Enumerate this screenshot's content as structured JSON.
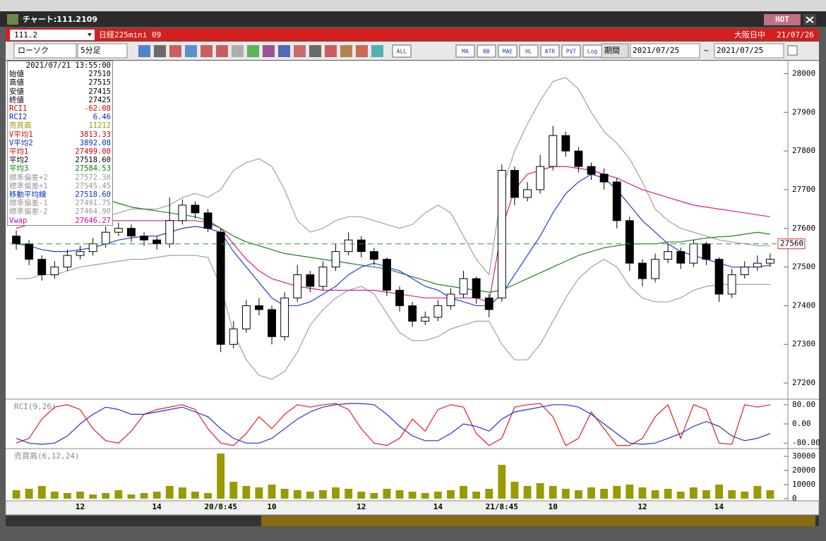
{
  "window": {
    "title": "チャート:111.2109",
    "hot": "HOT"
  },
  "header": {
    "code": "111.2",
    "name": "日経225mini 09",
    "market": "大阪日中",
    "date": "21/07/26"
  },
  "toolbar": {
    "chart_type": "ローソク",
    "interval": "5分足",
    "buttons": [
      "ALL",
      "MA",
      "BB",
      "MAE",
      "HL",
      "ATR",
      "PVT",
      "Log"
    ],
    "period_label": "期間",
    "from": "2021/07/25",
    "tilde": "~",
    "to": "2021/07/25"
  },
  "info_panel": {
    "datetime": "2021/07/21  13:55:00",
    "rows": [
      {
        "label": "始値",
        "value": "27510",
        "color": "#000"
      },
      {
        "label": "高値",
        "value": "27515",
        "color": "#000"
      },
      {
        "label": "安値",
        "value": "27415",
        "color": "#000"
      },
      {
        "label": "終値",
        "value": "27425",
        "color": "#000"
      },
      {
        "label": "RCI1",
        "value": "-62.08",
        "color": "#d00000"
      },
      {
        "label": "RCI2",
        "value": "6.46",
        "color": "#0030c0"
      },
      {
        "label": "売買高",
        "value": "11212",
        "color": "#9a9a00"
      },
      {
        "label": "V平均1",
        "value": "3813.33",
        "color": "#d00000"
      },
      {
        "label": "V平均2",
        "value": "3892.08",
        "color": "#0030c0"
      },
      {
        "label": "平均1",
        "value": "27499.00",
        "color": "#d00000"
      },
      {
        "label": "平均2",
        "value": "27518.60",
        "color": "#000"
      },
      {
        "label": "平均3",
        "value": "27584.53",
        "color": "#008000"
      },
      {
        "label": "標準偏差+2",
        "value": "27572.30",
        "color": "#999"
      },
      {
        "label": "標準偏差+1",
        "value": "27545.45",
        "color": "#999"
      },
      {
        "label": "移動平均線",
        "value": "27518.60",
        "color": "#0030c0"
      },
      {
        "label": "標準偏差-1",
        "value": "27491.75",
        "color": "#999"
      },
      {
        "label": "標準偏差-2",
        "value": "27464.90",
        "color": "#999"
      },
      {
        "label": "Vwap",
        "value": "27646.27",
        "color": "#d000a0"
      }
    ]
  },
  "chart_data": [
    {
      "type": "candlestick",
      "categories": [
        null,
        null,
        null,
        null,
        null,
        "12",
        null,
        null,
        null,
        null,
        null,
        "14",
        null,
        null,
        null,
        null,
        "20/8:45",
        null,
        null,
        null,
        "10",
        null,
        null,
        null,
        null,
        null,
        null,
        "12",
        null,
        null,
        null,
        null,
        null,
        "14",
        null,
        null,
        null,
        null,
        "21/8:45",
        null,
        null,
        null,
        "10",
        null,
        null,
        null,
        null,
        null,
        null,
        "12",
        null,
        null,
        null,
        null,
        null,
        "14",
        null,
        null,
        null,
        null
      ],
      "open": [
        27580,
        27560,
        27520,
        27480,
        27500,
        27530,
        27540,
        27560,
        27590,
        27600,
        27580,
        27570,
        27560,
        27620,
        27660,
        27640,
        27590,
        27300,
        27340,
        27400,
        27390,
        27320,
        27420,
        27480,
        27450,
        27500,
        27540,
        27570,
        27540,
        27520,
        27440,
        27400,
        27360,
        27370,
        27400,
        27430,
        27470,
        27420,
        27420,
        27750,
        27680,
        27700,
        27760,
        27840,
        27800,
        27760,
        27740,
        27720,
        27620,
        27510,
        27470,
        27520,
        27540,
        27510,
        27560,
        27520,
        27430,
        27480,
        27500,
        27510
      ],
      "high": [
        27595,
        27570,
        27530,
        27515,
        27545,
        27555,
        27575,
        27605,
        27615,
        27610,
        27590,
        27580,
        27680,
        27675,
        27670,
        27650,
        27600,
        27360,
        27415,
        27420,
        27400,
        27435,
        27505,
        27490,
        27515,
        27560,
        27590,
        27580,
        27550,
        27525,
        27450,
        27410,
        27385,
        27415,
        27445,
        27490,
        27475,
        27430,
        27765,
        27760,
        27720,
        27790,
        27865,
        27850,
        27810,
        27770,
        27755,
        27730,
        27630,
        27520,
        27535,
        27560,
        27550,
        27570,
        27565,
        27525,
        27495,
        27515,
        27530,
        27535
      ],
      "low": [
        27545,
        27505,
        27465,
        27470,
        27490,
        27520,
        27530,
        27550,
        27580,
        27565,
        27555,
        27545,
        27550,
        27610,
        27625,
        27590,
        27280,
        27290,
        27330,
        27375,
        27300,
        27310,
        27410,
        27435,
        27440,
        27490,
        27530,
        27525,
        27505,
        27425,
        27385,
        27345,
        27350,
        27360,
        27390,
        27420,
        27405,
        27370,
        27410,
        27660,
        27670,
        27690,
        27750,
        27785,
        27745,
        27725,
        27700,
        27600,
        27490,
        27450,
        27460,
        27510,
        27495,
        27500,
        27505,
        27410,
        27420,
        27470,
        27490,
        27500
      ],
      "close": [
        27560,
        27520,
        27480,
        27500,
        27530,
        27540,
        27560,
        27590,
        27600,
        27580,
        27570,
        27560,
        27620,
        27660,
        27640,
        27600,
        27300,
        27340,
        27400,
        27390,
        27320,
        27420,
        27480,
        27450,
        27500,
        27540,
        27570,
        27540,
        27520,
        27440,
        27400,
        27360,
        27370,
        27400,
        27430,
        27470,
        27420,
        27390,
        27750,
        27680,
        27700,
        27760,
        27840,
        27800,
        27760,
        27740,
        27720,
        27620,
        27510,
        27470,
        27520,
        27540,
        27510,
        27560,
        27520,
        27430,
        27480,
        27500,
        27510,
        27520
      ],
      "up_color": "#ffffff",
      "down_color": "#000000",
      "series": [
        {
          "color": "#a0a0a0",
          "values": [
            27650,
            27640,
            27630,
            27620,
            27615,
            27615,
            27620,
            27630,
            27640,
            27650,
            27650,
            27650,
            27660,
            27680,
            27690,
            27680,
            27700,
            27750,
            27770,
            27780,
            27760,
            27700,
            27620,
            27590,
            27600,
            27620,
            27630,
            27630,
            27620,
            27610,
            27600,
            27610,
            27640,
            27660,
            27640,
            27580,
            27520,
            27480,
            27700,
            27800,
            27870,
            27930,
            27980,
            27990,
            27960,
            27900,
            27850,
            27820,
            27780,
            27720,
            27650,
            27620,
            27600,
            27590,
            27580,
            27570,
            27565,
            27560,
            27555,
            27555
          ]
        },
        {
          "color": "#a0a0a0",
          "values": [
            27470,
            27470,
            27480,
            27480,
            27490,
            27500,
            27505,
            27510,
            27515,
            27520,
            27520,
            27525,
            27530,
            27530,
            27530,
            27525,
            27450,
            27330,
            27260,
            27220,
            27210,
            27230,
            27280,
            27350,
            27390,
            27420,
            27440,
            27450,
            27430,
            27380,
            27330,
            27310,
            27310,
            27320,
            27340,
            27350,
            27360,
            27360,
            27300,
            27260,
            27260,
            27300,
            27360,
            27420,
            27470,
            27500,
            27520,
            27500,
            27450,
            27420,
            27410,
            27410,
            27420,
            27440,
            27450,
            27455,
            27455,
            27455,
            27455,
            27455
          ]
        },
        {
          "color": "#d0208a",
          "values": [
            27600,
            27610,
            27615,
            27615,
            27620,
            27620,
            27620,
            27620,
            27620,
            27620,
            27620,
            27620,
            27620,
            27620,
            27620,
            27615,
            27600,
            27560,
            27520,
            27490,
            27470,
            27460,
            27450,
            27445,
            27440,
            27440,
            27440,
            27440,
            27440,
            27435,
            27430,
            27425,
            27420,
            27420,
            27420,
            27420,
            27420,
            27410,
            27600,
            27700,
            27740,
            27750,
            27760,
            27760,
            27755,
            27750,
            27740,
            27730,
            27715,
            27700,
            27690,
            27680,
            27670,
            27660,
            27655,
            27650,
            27645,
            27640,
            27635,
            27630
          ]
        },
        {
          "color": "#208020",
          "values": [
            27760,
            27745,
            27730,
            27715,
            27705,
            27695,
            27685,
            27675,
            27665,
            27655,
            27650,
            27645,
            27640,
            27635,
            27630,
            27620,
            27600,
            27580,
            27565,
            27555,
            27545,
            27535,
            27530,
            27525,
            27520,
            27515,
            27510,
            27505,
            27500,
            27495,
            27485,
            27475,
            27465,
            27455,
            27450,
            27445,
            27440,
            27435,
            27440,
            27455,
            27470,
            27485,
            27500,
            27515,
            27530,
            27540,
            27550,
            27555,
            27560,
            27560,
            27560,
            27565,
            27565,
            27570,
            27575,
            27578,
            27580,
            27585,
            27590,
            27585
          ]
        },
        {
          "color": "#2040d0",
          "values": [
            27560,
            27555,
            27545,
            27540,
            27540,
            27545,
            27550,
            27560,
            27570,
            27575,
            27580,
            27580,
            27590,
            27600,
            27605,
            27600,
            27590,
            27540,
            27500,
            27460,
            27420,
            27400,
            27400,
            27410,
            27430,
            27450,
            27480,
            27500,
            27510,
            27500,
            27490,
            27470,
            27450,
            27440,
            27420,
            27410,
            27400,
            27400,
            27430,
            27480,
            27530,
            27580,
            27640,
            27690,
            27720,
            27740,
            27730,
            27700,
            27660,
            27620,
            27590,
            27560,
            27540,
            27530,
            27520,
            27510,
            27500,
            27500,
            27500,
            27505
          ]
        }
      ],
      "last_price": 27560,
      "last_price_color": "#2a9a2a",
      "ylim": [
        27160,
        28030
      ],
      "yticks": [
        27200,
        27300,
        27400,
        27500,
        27600,
        27700,
        27800,
        27900,
        28000
      ]
    },
    {
      "type": "line",
      "title": "RCI(9,26)",
      "series": [
        {
          "color": "#e02020",
          "values": [
            -80,
            -60,
            20,
            70,
            80,
            60,
            -20,
            -70,
            -80,
            -30,
            40,
            60,
            70,
            80,
            60,
            -20,
            -80,
            -90,
            -40,
            30,
            -20,
            40,
            80,
            70,
            80,
            85,
            60,
            -20,
            -80,
            -90,
            -60,
            20,
            -30,
            60,
            80,
            70,
            -40,
            -90,
            -60,
            70,
            80,
            85,
            30,
            -90,
            -60,
            50,
            -20,
            -90,
            -90,
            -60,
            30,
            80,
            -60,
            80,
            60,
            -80,
            -85,
            80,
            70,
            80
          ]
        },
        {
          "color": "#2030d0",
          "values": [
            -60,
            -80,
            -85,
            -80,
            -50,
            0,
            40,
            70,
            60,
            40,
            40,
            50,
            60,
            70,
            50,
            30,
            -20,
            -60,
            -80,
            -80,
            -60,
            -20,
            20,
            50,
            70,
            80,
            85,
            85,
            80,
            40,
            -10,
            -50,
            -70,
            -70,
            -40,
            0,
            -10,
            -30,
            20,
            50,
            60,
            70,
            80,
            80,
            70,
            40,
            0,
            -40,
            -80,
            -85,
            -80,
            -60,
            -40,
            -10,
            10,
            -10,
            -50,
            -70,
            -60,
            -40
          ]
        }
      ],
      "ylim": [
        -100,
        100
      ],
      "yticks": [
        {
          "value": 80,
          "label": "80.00"
        },
        {
          "value": 0,
          "label": "0.00"
        },
        {
          "value": -80,
          "label": "-80.00"
        }
      ]
    },
    {
      "type": "bar",
      "title": "売買高(6,12,24)",
      "color": "#9a9a00",
      "values": [
        6000,
        7000,
        9000,
        5000,
        4000,
        5000,
        3000,
        4000,
        6000,
        3000,
        4000,
        5000,
        9000,
        8000,
        5000,
        4000,
        32000,
        12000,
        9000,
        8000,
        10000,
        7000,
        6000,
        5000,
        6000,
        8000,
        7000,
        5000,
        4000,
        7000,
        6000,
        5000,
        4000,
        5000,
        6000,
        9000,
        5000,
        7000,
        24000,
        12000,
        9000,
        11000,
        9000,
        7000,
        6000,
        8000,
        7000,
        9000,
        10000,
        8000,
        6000,
        7000,
        5000,
        8000,
        6000,
        10000,
        6000,
        5000,
        9000,
        6000
      ],
      "ylim": [
        0,
        35000
      ],
      "yticks": [
        0,
        10000,
        20000,
        30000
      ]
    }
  ]
}
